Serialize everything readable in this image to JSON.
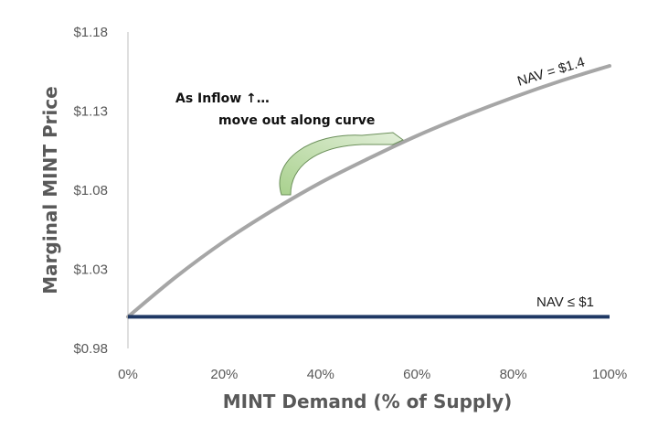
{
  "chart_data": {
    "type": "line",
    "title": "",
    "xlabel": "MINT Demand (% of Supply)",
    "ylabel": "Marginal MINT Price",
    "xlim": [
      0,
      100
    ],
    "ylim": [
      0.98,
      1.18
    ],
    "x_ticks": [
      0,
      20,
      40,
      60,
      80,
      100
    ],
    "x_tick_labels": [
      "0%",
      "20%",
      "40%",
      "60%",
      "80%",
      "100%"
    ],
    "y_ticks": [
      0.98,
      1.03,
      1.08,
      1.13,
      1.18
    ],
    "y_tick_labels": [
      "$0.98",
      "$1.03",
      "$1.08",
      "$1.13",
      "$1.18"
    ],
    "grid": false,
    "series": [
      {
        "name": "NAV = $1.4",
        "color": "#a6a6a6",
        "x": [
          0,
          10,
          20,
          30,
          40,
          50,
          60,
          70,
          80,
          90,
          100
        ],
        "y": [
          1.0,
          1.0253,
          1.0477,
          1.0672,
          1.0848,
          1.1001,
          1.1144,
          1.1271,
          1.1387,
          1.1492,
          1.1586
        ]
      },
      {
        "name": "NAV ≤ $1",
        "color": "#1f3864",
        "x": [
          0,
          100
        ],
        "y": [
          1.0,
          1.0
        ]
      }
    ],
    "annotations": [
      {
        "text": "As Inflow ↑…"
      },
      {
        "text": "move out along curve"
      }
    ]
  }
}
